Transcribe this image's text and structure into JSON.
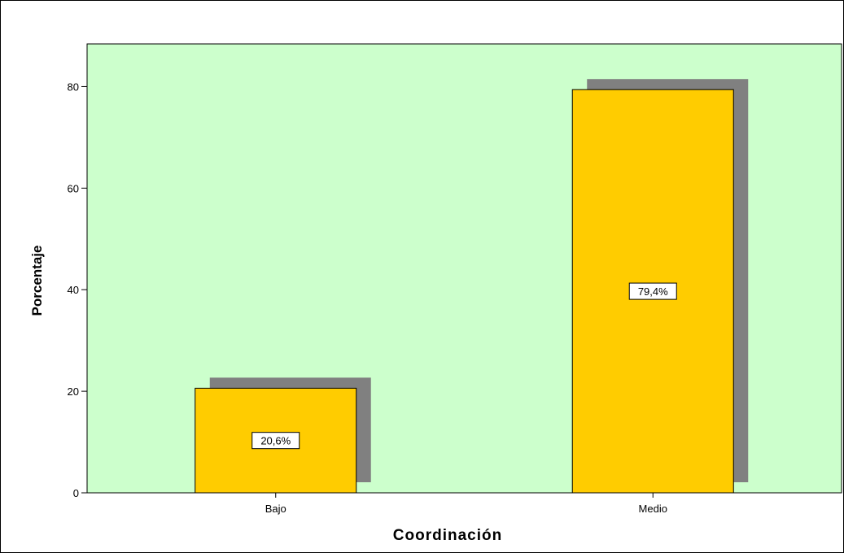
{
  "chart_data": {
    "type": "bar",
    "categories": [
      "Bajo",
      "Medio"
    ],
    "values": [
      20.6,
      79.4
    ],
    "data_labels": [
      "20,6%",
      "79,4%"
    ],
    "xlabel": "Coordinación",
    "ylabel": "Porcentaje",
    "ylim": [
      0,
      88.4
    ],
    "yticks": [
      0,
      20,
      40,
      60,
      80
    ],
    "grid": false,
    "legend": "none",
    "bar_style": "3d-shadow",
    "colors": {
      "plot_background": "#ccffcc",
      "bar_fill": "#ffcc00",
      "bar_shadow": "#808080",
      "bar_outline": "#000000"
    }
  }
}
